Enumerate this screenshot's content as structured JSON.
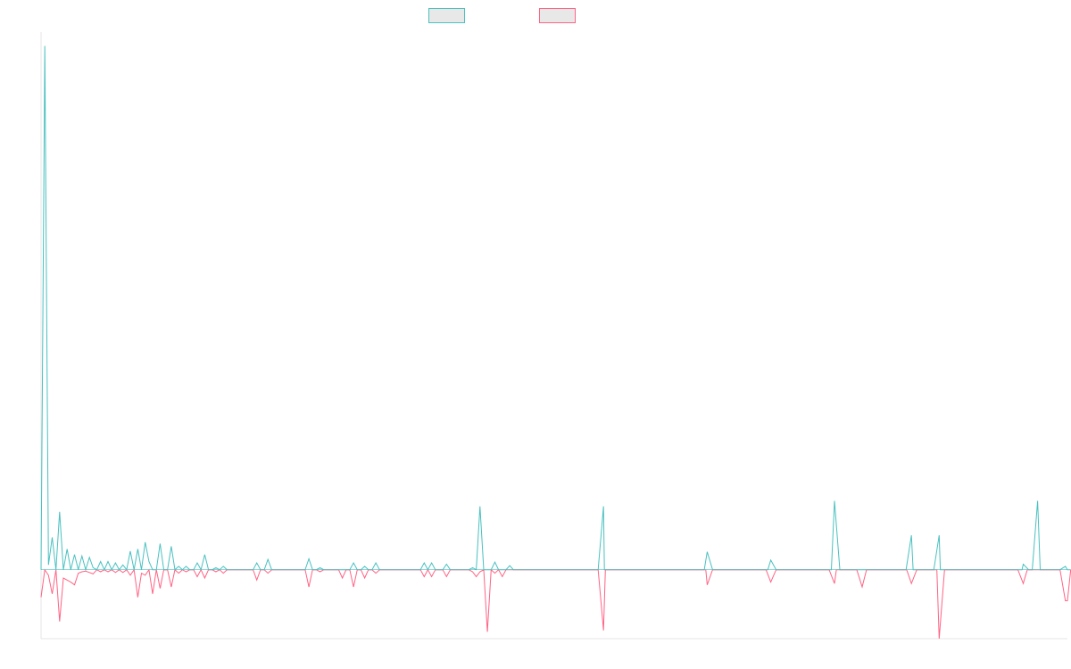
{
  "colors": {
    "series_a": "#4bc0c0",
    "series_b": "#ff6384",
    "legend_fill": "#e8e8e8",
    "axis": "#e5e5e5"
  },
  "chart_data": {
    "type": "line",
    "title": "",
    "xlabel": "",
    "ylabel": "",
    "ylim": [
      -100,
      780
    ],
    "legend": {
      "placement": "top-center",
      "style": "box"
    },
    "grid": false,
    "series": [
      {
        "color": "#4bc0c0",
        "values": [
          0,
          760,
          7,
          47,
          0,
          84,
          0,
          30,
          0,
          22,
          0,
          20,
          0,
          18,
          3,
          0,
          12,
          0,
          12,
          0,
          10,
          0,
          7,
          0,
          27,
          0,
          30,
          0,
          40,
          12,
          0,
          0,
          38,
          0,
          0,
          34,
          0,
          5,
          0,
          5,
          0,
          0,
          10,
          0,
          22,
          0,
          0,
          3,
          0,
          5,
          0,
          0,
          0,
          0,
          0,
          0,
          0,
          0,
          10,
          0,
          0,
          15,
          0,
          0,
          0,
          0,
          0,
          0,
          0,
          0,
          0,
          0,
          16,
          0,
          0,
          3,
          0,
          0,
          0,
          0,
          0,
          0,
          0,
          0,
          10,
          0,
          0,
          5,
          0,
          0,
          10,
          0,
          0,
          0,
          0,
          0,
          0,
          0,
          0,
          0,
          0,
          0,
          0,
          10,
          0,
          10,
          0,
          0,
          0,
          8,
          0,
          0,
          0,
          0,
          0,
          0,
          3,
          0,
          92,
          0,
          0,
          0,
          11,
          0,
          0,
          0,
          6,
          0,
          0,
          0,
          0,
          0,
          0,
          0,
          0,
          0,
          0,
          0,
          0,
          0,
          0,
          0,
          0,
          0,
          0,
          0,
          0,
          0,
          0,
          0,
          0,
          0,
          0,
          0,
          0,
          0,
          0,
          0,
          0,
          0,
          0,
          0,
          0,
          0,
          0,
          0,
          0,
          0,
          0,
          0,
          0,
          0,
          0,
          0,
          0,
          0,
          0,
          0,
          0,
          0,
          0,
          0,
          0,
          0,
          0,
          0,
          0,
          0,
          0,
          0,
          0,
          0,
          0,
          0,
          0,
          0,
          0,
          0,
          0,
          0,
          0,
          0,
          0
        ]
      },
      {
        "color": "#ff6384",
        "values": [
          -40,
          0,
          -8,
          -35,
          0,
          -75,
          -12,
          -15,
          -18,
          -22,
          -5,
          -3,
          -2,
          -4,
          -6,
          0,
          -3,
          0,
          -3,
          0,
          -4,
          0,
          -4,
          0,
          -8,
          0,
          -40,
          -5,
          -8,
          0,
          -35,
          0,
          -27,
          0,
          0,
          -25,
          0,
          -5,
          0,
          -3,
          0,
          0,
          -10,
          0,
          -12,
          0,
          0,
          -3,
          0,
          -5,
          0,
          0,
          0,
          0,
          0,
          0,
          0,
          0,
          -15,
          0,
          0,
          -5,
          0,
          0,
          0,
          0,
          0,
          0,
          0,
          0,
          0,
          0,
          -25,
          0,
          0,
          -3,
          0,
          0,
          0,
          0,
          0,
          -12,
          0,
          0,
          -25,
          0,
          0,
          -12,
          0,
          0,
          -5,
          0,
          0,
          0,
          0,
          0,
          0,
          0,
          0,
          0,
          0,
          0,
          0,
          -10,
          0,
          -10,
          0,
          0,
          0,
          -10,
          0,
          0,
          0,
          0,
          0,
          0,
          -3,
          -10,
          -3,
          0,
          -90,
          0,
          -5,
          0,
          -10,
          0,
          0,
          0,
          0,
          0,
          0,
          0,
          0,
          0,
          0,
          0,
          0,
          0,
          0,
          0,
          0,
          0,
          0,
          0,
          0,
          0,
          0,
          0,
          0,
          0,
          0,
          0,
          0,
          0,
          0,
          0,
          0,
          0,
          0,
          0,
          0,
          0,
          0,
          0,
          0,
          0,
          0,
          0,
          0,
          0,
          0,
          0,
          0,
          0,
          0,
          0,
          0,
          0,
          0,
          0,
          0,
          0,
          0,
          0,
          0,
          0,
          0,
          0,
          0,
          0,
          0,
          0,
          0,
          0,
          0,
          0,
          0,
          -45
        ]
      }
    ],
    "spikes": [
      {
        "x_frac": 0.548,
        "a": 92,
        "b": -88
      },
      {
        "x_frac": 0.649,
        "a": 26,
        "b": -22
      },
      {
        "x_frac": 0.711,
        "a": 14,
        "b": -18
      },
      {
        "x_frac": 0.773,
        "a": 100,
        "b": -20
      },
      {
        "x_frac": 0.8,
        "a": 0,
        "b": -25
      },
      {
        "x_frac": 0.848,
        "a": 50,
        "b": -20
      },
      {
        "x_frac": 0.875,
        "a": 50,
        "b": -100
      },
      {
        "x_frac": 0.957,
        "a": 8,
        "b": -20
      },
      {
        "x_frac": 0.971,
        "a": 100,
        "b": 0
      },
      {
        "x_frac": 0.998,
        "a": 5,
        "b": -45
      }
    ]
  }
}
